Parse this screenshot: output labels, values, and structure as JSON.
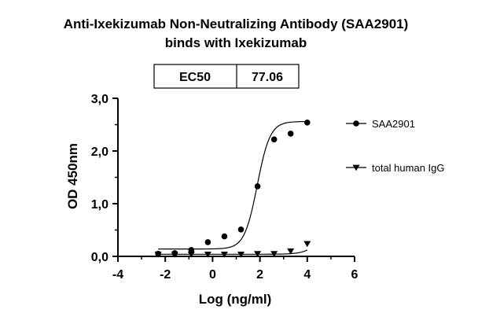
{
  "chart_data": {
    "type": "scatter",
    "title": [
      "Anti-Ixekizumab Non-Neutralizing Antibody (SAA2901)",
      "binds with Ixekizumab"
    ],
    "xlabel": "Log (ng/ml)",
    "ylabel": "OD 450nm",
    "xlim": [
      -4,
      6
    ],
    "ylim": [
      0,
      3
    ],
    "x_ticks": [
      "-4",
      "-2",
      "0",
      "2",
      "4",
      "6"
    ],
    "y_ticks": [
      "0,0",
      "1,0",
      "2,0",
      "3,0"
    ],
    "grid": false,
    "legend_position": "right",
    "ec50_label": "EC50",
    "ec50_value": "77.06",
    "series": [
      {
        "name": "SAA2901",
        "marker": "circle",
        "x": [
          -2.3,
          -1.6,
          -0.9,
          -0.2,
          0.5,
          1.2,
          1.9,
          2.6,
          3.3,
          4.0
        ],
        "y": [
          0.05,
          0.06,
          0.12,
          0.27,
          0.38,
          0.51,
          1.33,
          2.22,
          2.33,
          2.54
        ],
        "fit": {
          "bottom": 0.14,
          "top": 2.56,
          "logEC50": 1.887,
          "hill": 1.6
        }
      },
      {
        "name": "total human IgG",
        "marker": "triangle-down",
        "x": [
          -2.3,
          -1.6,
          -0.9,
          -0.2,
          0.5,
          1.2,
          1.9,
          2.6,
          3.3,
          4.0
        ],
        "y": [
          0.04,
          0.04,
          0.04,
          0.04,
          0.04,
          0.04,
          0.05,
          0.05,
          0.1,
          0.24
        ],
        "fit": {
          "bottom": 0.04,
          "top": 0.6,
          "logEC50": 4.6,
          "hill": 1.3
        }
      }
    ]
  }
}
